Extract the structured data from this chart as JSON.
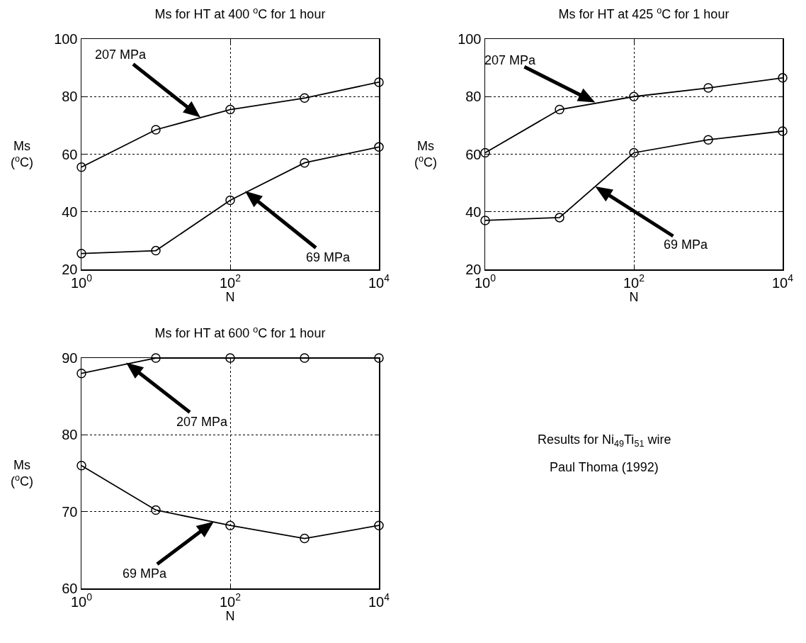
{
  "chart_data": [
    {
      "type": "line",
      "title": "Ms for HT at 400 $^{o}$C for 1 hour",
      "xlabel": "N",
      "ylabel": "Ms\n($^{o}$C)",
      "x": [
        1,
        10,
        100,
        1000,
        10000
      ],
      "series": [
        {
          "color": "#000000",
          "values": [
            55.5,
            68.5,
            75.5,
            79.5,
            85
          ]
        },
        {
          "color": "#000000",
          "values": [
            25.5,
            26.5,
            44,
            57,
            62.5
          ]
        }
      ],
      "annotations": [
        "207 MPa",
        "69 MPa"
      ],
      "log": "x",
      "xlim": [
        1,
        10000
      ],
      "xticks": [
        {
          "value": 1,
          "label": "10$^{0}$"
        },
        {
          "value": 100,
          "label": "10$^{2}$"
        },
        {
          "value": 10000,
          "label": "10$^{4}$"
        }
      ],
      "ylim": [
        20,
        100
      ],
      "yticks": [
        20,
        40,
        60,
        80,
        100
      ],
      "grid": true,
      "marker": "circle",
      "line_style": "solid"
    },
    {
      "type": "line",
      "title": "Ms for HT at 425 $^{o}$C for 1 hour",
      "xlabel": "N",
      "ylabel": "Ms\n($^{o}$C)",
      "x": [
        1,
        10,
        100,
        1000,
        10000
      ],
      "series": [
        {
          "color": "#000000",
          "values": [
            60.5,
            75.5,
            80,
            83,
            86.5
          ]
        },
        {
          "color": "#000000",
          "values": [
            37,
            38,
            60.5,
            65,
            68
          ]
        }
      ],
      "annotations": [
        "207 MPa",
        "69 MPa"
      ],
      "log": "x",
      "xlim": [
        1,
        10000
      ],
      "xticks": [
        {
          "value": 1,
          "label": "10$^{0}$"
        },
        {
          "value": 100,
          "label": "10$^{2}$"
        },
        {
          "value": 10000,
          "label": "10$^{4}$"
        }
      ],
      "ylim": [
        20,
        100
      ],
      "yticks": [
        20,
        40,
        60,
        80,
        100
      ],
      "grid": true,
      "marker": "circle",
      "line_style": "solid"
    },
    {
      "type": "line",
      "title": "Ms for HT at 600 $^{o}$C for 1 hour",
      "xlabel": "N",
      "ylabel": "Ms\n($^{o}$C)",
      "x": [
        1,
        10,
        100,
        1000,
        10000
      ],
      "series": [
        {
          "color": "#000000",
          "values": [
            88,
            90,
            90,
            90,
            90
          ]
        },
        {
          "color": "#000000",
          "values": [
            76,
            70.2,
            68.2,
            66.5,
            68.2
          ]
        }
      ],
      "annotations": [
        "207 MPa",
        "69 MPa"
      ],
      "log": "x",
      "xlim": [
        1,
        10000
      ],
      "xticks": [
        {
          "value": 1,
          "label": "10$^{0}$"
        },
        {
          "value": 100,
          "label": "10$^{2}$"
        },
        {
          "value": 10000,
          "label": "10$^{4}$"
        }
      ],
      "ylim": [
        60,
        90
      ],
      "yticks": [
        60,
        70,
        80,
        90
      ],
      "grid": true,
      "marker": "circle",
      "line_style": "solid"
    },
    {
      "type": "other",
      "annotations": [
        "Results for Ni$_{49}$Ti$_{51}$ wire",
        "Paul Thoma (1992)"
      ]
    }
  ]
}
